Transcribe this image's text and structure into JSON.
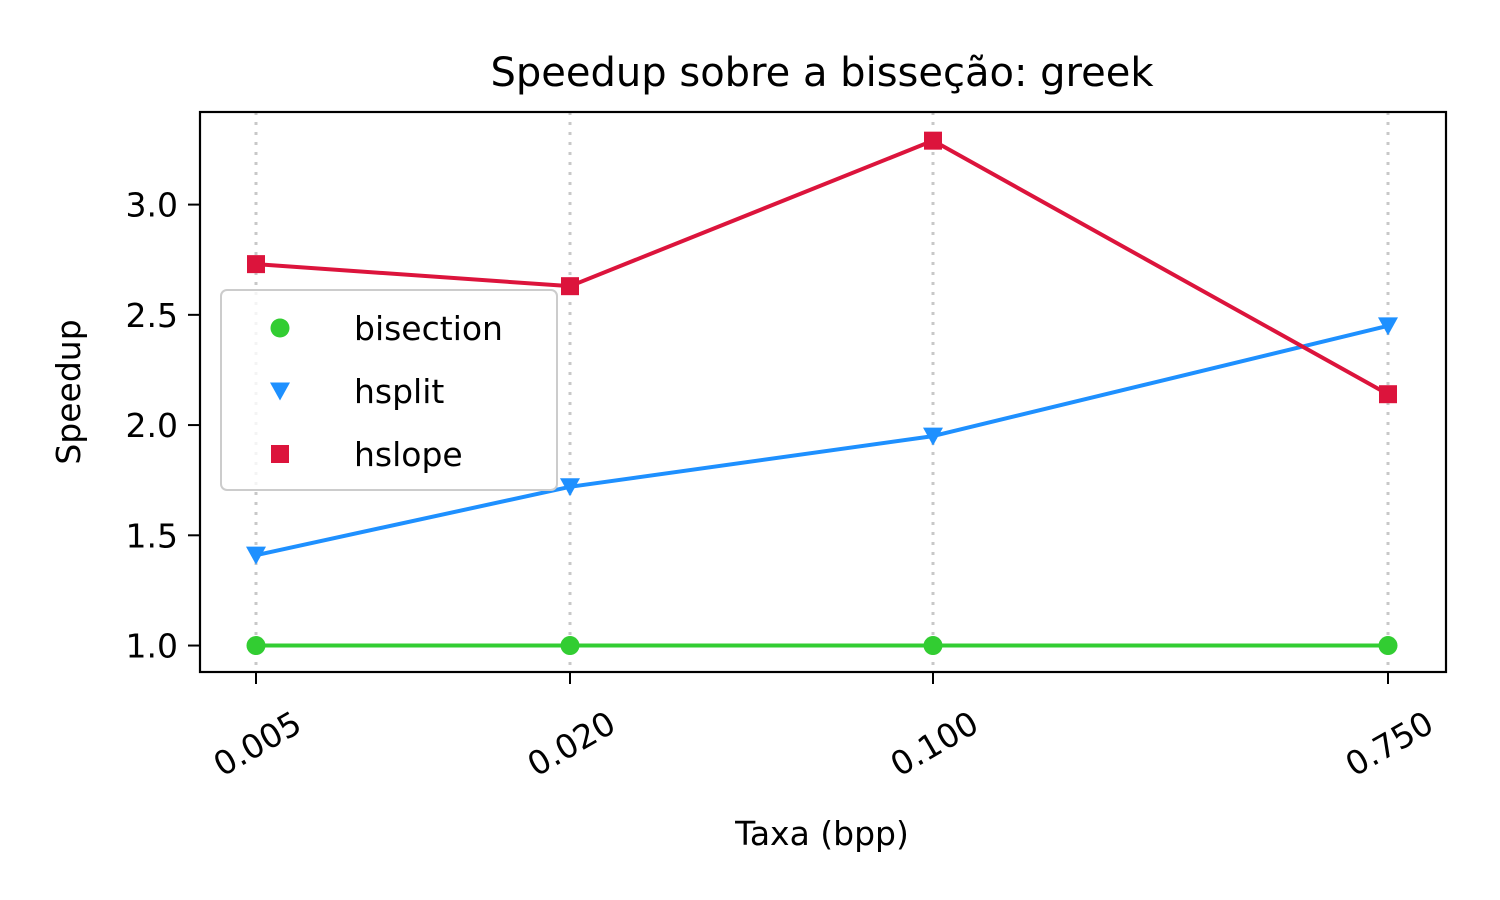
{
  "chart_data": {
    "type": "line",
    "title": "Speedup sobre a bisseção: greek",
    "xlabel": "Taxa (bpp)",
    "ylabel": "Speedup",
    "x_scale": "log",
    "categories": [
      "0.005",
      "0.020",
      "0.100",
      "0.750"
    ],
    "x": [
      0.005,
      0.02,
      0.1,
      0.75
    ],
    "ylim": [
      0.88,
      3.42
    ],
    "yticks": [
      "1.0",
      "1.5",
      "2.0",
      "2.5",
      "3.0"
    ],
    "y_tick_values": [
      1.0,
      1.5,
      2.0,
      2.5,
      3.0
    ],
    "grid": "vertical dotted",
    "legend_position": "center-left",
    "series": [
      {
        "name": "bisection",
        "marker": "circle",
        "color": "#32cd32",
        "values": [
          1.0,
          1.0,
          1.0,
          1.0
        ]
      },
      {
        "name": "hsplit",
        "marker": "triangle-down",
        "color": "#1e90ff",
        "values": [
          1.41,
          1.72,
          1.95,
          2.45
        ]
      },
      {
        "name": "hslope",
        "marker": "square",
        "color": "#dc143c",
        "values": [
          2.73,
          2.63,
          3.29,
          2.14
        ]
      }
    ]
  }
}
